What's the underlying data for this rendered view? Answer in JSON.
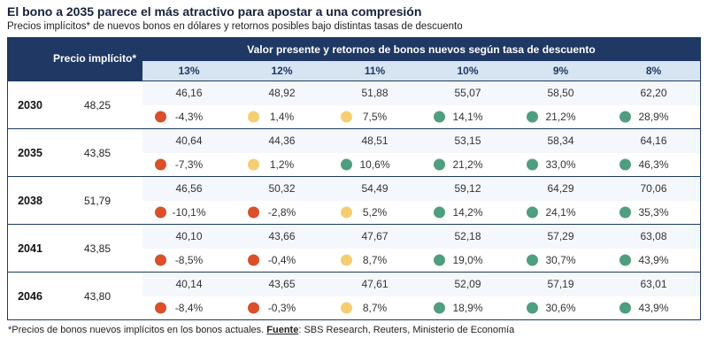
{
  "title": "El bono a 2035 parece el más atractivo para apostar a una compresión",
  "subtitle": "Precios implícitos* de nuevos bonos en dólares y retornos posibles bajo distintas tasas de descuento",
  "header": {
    "precio_label": "Precio implícito*",
    "valor_label": "Valor presente y retornos de bonos nuevos según tasa de descuento"
  },
  "footnote": {
    "note": "*Precios de bonos nuevos implícitos en los bonos actuales. ",
    "fuente_label": "Fuente",
    "fuente_rest": ": SBS Research, Reuters, Ministerio de Economía"
  },
  "colors": {
    "navy": "#1F3864",
    "header_blue": "#D7E5F2",
    "red": "#D9502B",
    "yellow": "#F6CE72",
    "green": "#4F9E80"
  },
  "chart_data": {
    "type": "table",
    "title": "El bono a 2035 parece el más atractivo para apostar a una compresión",
    "subtitle": "Precios implícitos* de nuevos bonos en dólares y retornos posibles bajo distintas tasas de descuento",
    "discount_rates": [
      "13%",
      "12%",
      "11%",
      "10%",
      "9%",
      "8%"
    ],
    "rows": [
      {
        "year": "2030",
        "price": "48,25",
        "values": [
          "46,16",
          "48,92",
          "51,88",
          "55,07",
          "58,50",
          "62,20"
        ],
        "returns": [
          {
            "text": "-4,3%",
            "level": "red"
          },
          {
            "text": "1,4%",
            "level": "yellow"
          },
          {
            "text": "7,5%",
            "level": "yellow"
          },
          {
            "text": "14,1%",
            "level": "green"
          },
          {
            "text": "21,2%",
            "level": "green"
          },
          {
            "text": "28,9%",
            "level": "green"
          }
        ]
      },
      {
        "year": "2035",
        "price": "43,85",
        "values": [
          "40,64",
          "44,36",
          "48,51",
          "53,15",
          "58,34",
          "64,16"
        ],
        "returns": [
          {
            "text": "-7,3%",
            "level": "red"
          },
          {
            "text": "1,2%",
            "level": "yellow"
          },
          {
            "text": "10,6%",
            "level": "green"
          },
          {
            "text": "21,2%",
            "level": "green"
          },
          {
            "text": "33,0%",
            "level": "green"
          },
          {
            "text": "46,3%",
            "level": "green"
          }
        ]
      },
      {
        "year": "2038",
        "price": "51,79",
        "values": [
          "46,56",
          "50,32",
          "54,49",
          "59,12",
          "64,29",
          "70,06"
        ],
        "returns": [
          {
            "text": "-10,1%",
            "level": "red"
          },
          {
            "text": "-2,8%",
            "level": "red"
          },
          {
            "text": "5,2%",
            "level": "yellow"
          },
          {
            "text": "14,2%",
            "level": "green"
          },
          {
            "text": "24,1%",
            "level": "green"
          },
          {
            "text": "35,3%",
            "level": "green"
          }
        ]
      },
      {
        "year": "2041",
        "price": "43,85",
        "values": [
          "40,10",
          "43,66",
          "47,67",
          "52,18",
          "57,29",
          "63,08"
        ],
        "returns": [
          {
            "text": "-8,5%",
            "level": "red"
          },
          {
            "text": "-0,4%",
            "level": "red"
          },
          {
            "text": "8,7%",
            "level": "yellow"
          },
          {
            "text": "19,0%",
            "level": "green"
          },
          {
            "text": "30,7%",
            "level": "green"
          },
          {
            "text": "43,9%",
            "level": "green"
          }
        ]
      },
      {
        "year": "2046",
        "price": "43,80",
        "values": [
          "40,14",
          "43,65",
          "47,61",
          "52,09",
          "57,19",
          "63,01"
        ],
        "returns": [
          {
            "text": "-8,4%",
            "level": "red"
          },
          {
            "text": "-0,3%",
            "level": "red"
          },
          {
            "text": "8,7%",
            "level": "yellow"
          },
          {
            "text": "18,9%",
            "level": "green"
          },
          {
            "text": "30,6%",
            "level": "green"
          },
          {
            "text": "43,9%",
            "level": "green"
          }
        ]
      }
    ]
  }
}
